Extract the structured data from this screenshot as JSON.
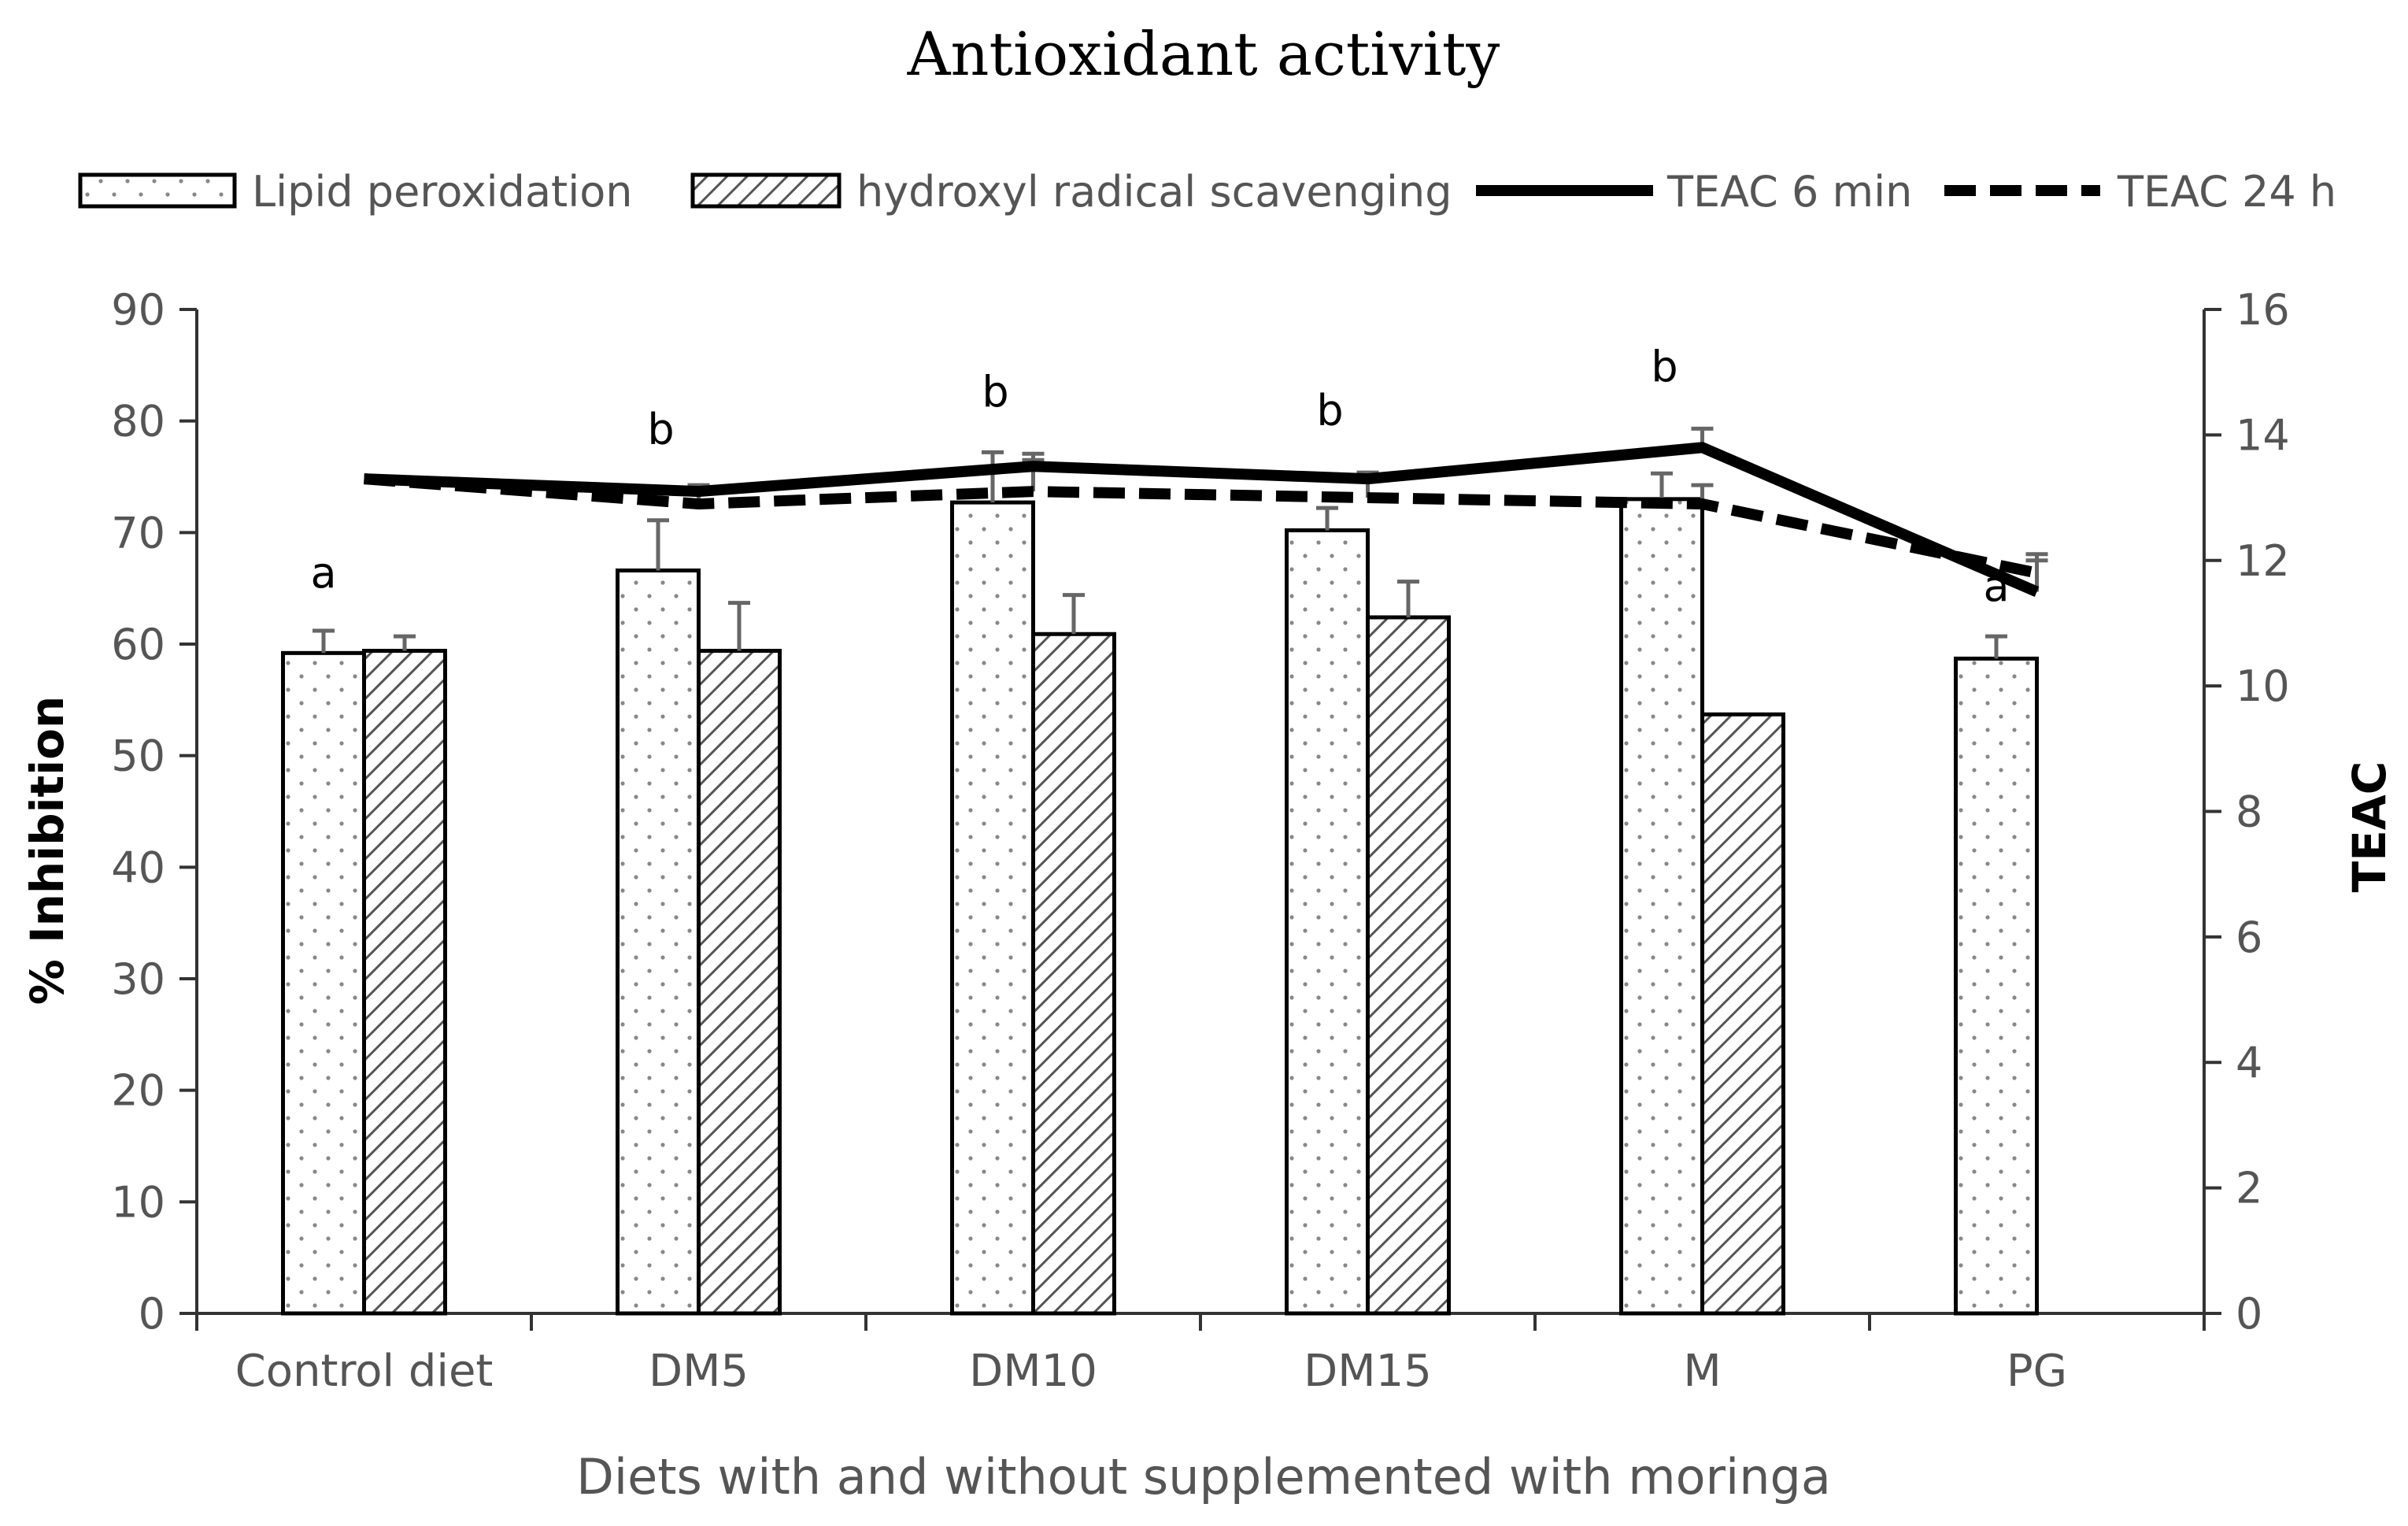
{
  "chart_data": {
    "type": "bar",
    "title": "Antioxidant activity",
    "xlabel": "Diets with and without supplemented with moringa",
    "ylabel": "% Inhibition",
    "y2label": "TEAC",
    "categories": [
      "Control diet",
      "DM5",
      "DM10",
      "DM15",
      "M",
      "PG"
    ],
    "ylim": [
      0,
      90
    ],
    "yticks": [
      "0",
      "10",
      "20",
      "30",
      "40",
      "50",
      "60",
      "70",
      "80",
      "90"
    ],
    "y2lim": [
      0,
      16
    ],
    "y2ticks": [
      "0",
      "2",
      "4",
      "6",
      "8",
      "10",
      "12",
      "14",
      "16"
    ],
    "series": [
      {
        "name": "Lipid peroxidation",
        "kind": "bar",
        "pattern": "dots",
        "axis": "left",
        "values": [
          59.2,
          66.6,
          72.7,
          70.2,
          73.0,
          58.7
        ],
        "errors": [
          2.0,
          4.5,
          4.5,
          2.0,
          2.3,
          2.0
        ]
      },
      {
        "name": "hydroxyl radical scavenging",
        "kind": "bar",
        "pattern": "hatch",
        "axis": "left",
        "values": [
          59.4,
          59.4,
          60.9,
          62.4,
          53.7,
          null
        ],
        "errors": [
          1.3,
          4.3,
          3.5,
          3.2,
          0.0,
          null
        ]
      },
      {
        "name": "TEAC 6 min",
        "kind": "line",
        "style": "solid",
        "axis": "right",
        "values": [
          13.3,
          13.1,
          13.5,
          13.3,
          13.8,
          11.5
        ],
        "errors": [
          0.0,
          0.0,
          0.2,
          0.1,
          0.3,
          0.5
        ]
      },
      {
        "name": "TEAC 24 h",
        "kind": "line",
        "style": "dashed",
        "axis": "right",
        "values": [
          13.3,
          12.9,
          13.1,
          13.0,
          12.9,
          11.8
        ],
        "errors": [
          0.0,
          0.3,
          0.5,
          0.4,
          0.3,
          0.3
        ]
      }
    ],
    "annotations": [
      "a",
      "b",
      "b",
      "b",
      "b",
      "a"
    ],
    "colors": {
      "bar_fill": "#ffffff",
      "bar_stroke": "#000000",
      "line": "#000000",
      "error": "#666666",
      "axis": "#333333"
    }
  }
}
